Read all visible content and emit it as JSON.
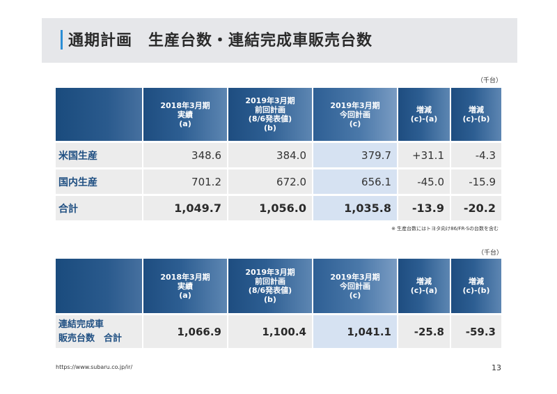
{
  "title": "通期計画　生産台数・連結完成車販売台数",
  "unit": "（千台）",
  "note": "※ 生産台数にはトヨタ向け86/FR-Sの台数を含む",
  "headers": {
    "col_a": [
      "2018年3月期",
      "実績",
      "(a)"
    ],
    "col_b": [
      "2019年3月期",
      "前回計画",
      "(8/6発表値)",
      "(b)"
    ],
    "col_c": [
      "2019年3月期",
      "今回計画",
      "(c)"
    ],
    "col_ca": [
      "増減",
      "(c)-(a)"
    ],
    "col_cb": [
      "増減",
      "(c)-(b)"
    ]
  },
  "production": {
    "rows": [
      {
        "label": "米国生産",
        "a": "348.6",
        "b": "384.0",
        "c": "379.7",
        "ca": "+31.1",
        "cb": "-4.3"
      },
      {
        "label": "国内生産",
        "a": "701.2",
        "b": "672.0",
        "c": "656.1",
        "ca": "-45.0",
        "cb": "-15.9"
      },
      {
        "label": "合計",
        "a": "1,049.7",
        "b": "1,056.0",
        "c": "1,035.8",
        "ca": "-13.9",
        "cb": "-20.2"
      }
    ]
  },
  "sales": {
    "label_line1": "連結完成車",
    "label_line2": "販売台数　合計",
    "a": "1,066.9",
    "b": "1,100.4",
    "c": "1,041.1",
    "ca": "-25.8",
    "cb": "-59.3"
  },
  "footer": {
    "url": "https://www.subaru.co.jp/ir/",
    "page": "13"
  },
  "colors": {
    "header_blue": "#1e4d80",
    "highlight_col": "#d6e2f2",
    "row_bg": "#ececec",
    "label_text": "#1f4f82",
    "title_accent": "#2b8ed6"
  }
}
